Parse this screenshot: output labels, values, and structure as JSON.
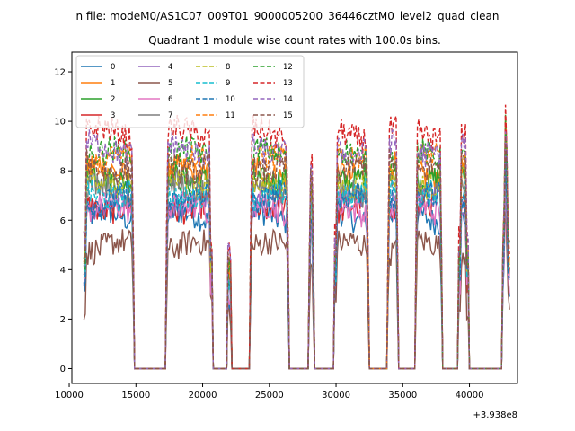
{
  "chart_data": {
    "type": "line",
    "suptitle": "n file: modeM0/AS1C07_009T01_9000005200_36446cztM0_level2_quad_clean",
    "title": "Quadrant 1 module wise count rates with 100.0s bins.",
    "xlabel": "",
    "ylabel": "",
    "x_offset_label": "+3.938e8",
    "xlim": [
      10200,
      43600
    ],
    "ylim": [
      -0.6,
      12.8
    ],
    "x_ticks": [
      10000,
      15000,
      20000,
      25000,
      30000,
      35000,
      40000
    ],
    "x_tick_labels": [
      "10000",
      "15000",
      "20000",
      "25000",
      "30000",
      "35000",
      "40000"
    ],
    "y_ticks": [
      0,
      2,
      4,
      6,
      8,
      10,
      12
    ],
    "y_tick_labels": [
      "0",
      "2",
      "4",
      "6",
      "8",
      "10",
      "12"
    ],
    "grid": false,
    "legend_placement": "top-left",
    "legend_columns": 4,
    "active_intervals": [
      [
        11100,
        14850
      ],
      [
        17250,
        20700
      ],
      [
        21900,
        22150
      ],
      [
        23550,
        26450
      ],
      [
        27950,
        28350
      ],
      [
        29900,
        32450
      ],
      [
        33850,
        34650
      ],
      [
        35950,
        37950
      ],
      [
        39200,
        39900
      ],
      [
        42500,
        43000
      ]
    ],
    "series": [
      {
        "name": "0",
        "color": "#1f77b4",
        "dash": "solid",
        "level": 6.1
      },
      {
        "name": "1",
        "color": "#ff7f0e",
        "dash": "solid",
        "level": 8.0
      },
      {
        "name": "2",
        "color": "#2ca02c",
        "dash": "solid",
        "level": 7.8
      },
      {
        "name": "3",
        "color": "#d62728",
        "dash": "solid",
        "level": 6.6
      },
      {
        "name": "4",
        "color": "#9467bd",
        "dash": "solid",
        "level": 6.8
      },
      {
        "name": "5",
        "color": "#8c564b",
        "dash": "solid",
        "level": 4.9
      },
      {
        "name": "6",
        "color": "#e377c2",
        "dash": "solid",
        "level": 6.4
      },
      {
        "name": "7",
        "color": "#7f7f7f",
        "dash": "solid",
        "level": 7.3
      },
      {
        "name": "8",
        "color": "#bcbd22",
        "dash": "dashed",
        "level": 7.6
      },
      {
        "name": "9",
        "color": "#17becf",
        "dash": "dashed",
        "level": 7.1
      },
      {
        "name": "10",
        "color": "#1f77b4",
        "dash": "dashed",
        "level": 6.9
      },
      {
        "name": "11",
        "color": "#ff7f0e",
        "dash": "dashed",
        "level": 8.4
      },
      {
        "name": "12",
        "color": "#2ca02c",
        "dash": "dashed",
        "level": 8.6
      },
      {
        "name": "13",
        "color": "#d62728",
        "dash": "dashed",
        "level": 9.5
      },
      {
        "name": "14",
        "color": "#9467bd",
        "dash": "dashed",
        "level": 8.9
      },
      {
        "name": "15",
        "color": "#8c564b",
        "dash": "dashed",
        "level": 8.2
      }
    ]
  }
}
